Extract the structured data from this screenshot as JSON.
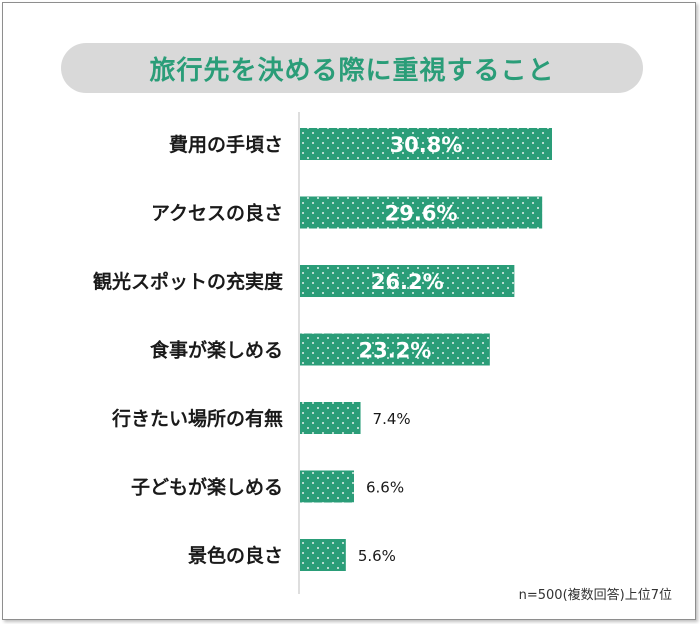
{
  "title": "旅行先を決める際に重視すること",
  "footnote": "n=500(複数回答)上位7位",
  "colors": {
    "bar": "#2a9d78",
    "dots": "#ffffff",
    "title_text": "#2a9d78",
    "title_bg": "#d9d9d9",
    "axis": "#bdbdbd"
  },
  "chart_data": {
    "type": "bar",
    "orientation": "horizontal",
    "categories": [
      "費用の手頃さ",
      "アクセスの良さ",
      "観光スポットの充実度",
      "食事が楽しめる",
      "行きたい場所の有無",
      "子どもが楽しめる",
      "景色の良さ"
    ],
    "values": [
      30.8,
      29.6,
      26.2,
      23.2,
      7.4,
      6.6,
      5.6
    ],
    "value_labels": [
      "30.8%",
      "29.6%",
      "26.2%",
      "23.2%",
      "7.4%",
      "6.6%",
      "5.6%"
    ],
    "unit": "%",
    "xlim": [
      0,
      30.8
    ],
    "grid": false,
    "legend": "none"
  }
}
